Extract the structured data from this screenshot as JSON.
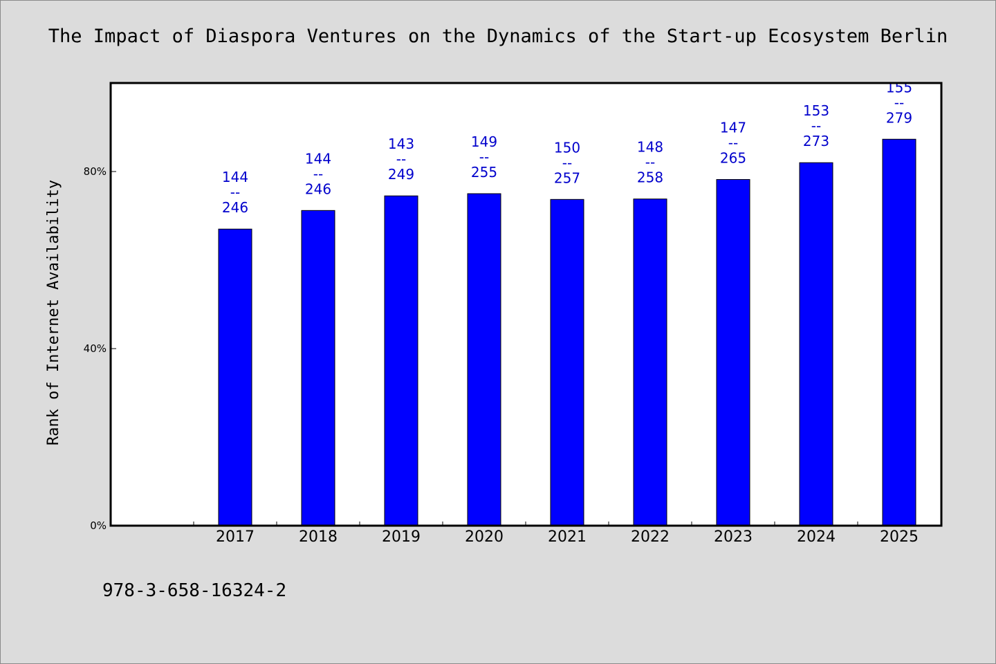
{
  "chart_data": {
    "type": "bar",
    "title": "The Impact of Diaspora Ventures on the Dynamics of the Start-up Ecosystem Berlin",
    "ylabel": "Rank of Internet Availability",
    "xlabel": "",
    "categories": [
      "2017",
      "2018",
      "2019",
      "2020",
      "2021",
      "2022",
      "2023",
      "2024",
      "2025"
    ],
    "values": [
      67,
      71.2,
      74.5,
      75,
      73.7,
      73.8,
      78.2,
      82,
      87.3
    ],
    "value_unit": "%",
    "data_labels": [
      {
        "top": "144",
        "mid": "--",
        "bottom": "246"
      },
      {
        "top": "144",
        "mid": "--",
        "bottom": "246"
      },
      {
        "top": "143",
        "mid": "--",
        "bottom": "249"
      },
      {
        "top": "149",
        "mid": "--",
        "bottom": "255"
      },
      {
        "top": "150",
        "mid": "--",
        "bottom": "257"
      },
      {
        "top": "148",
        "mid": "--",
        "bottom": "258"
      },
      {
        "top": "147",
        "mid": "--",
        "bottom": "265"
      },
      {
        "top": "153",
        "mid": "--",
        "bottom": "273"
      },
      {
        "top": "155",
        "mid": "--",
        "bottom": "279"
      }
    ],
    "ylim": [
      0,
      100
    ],
    "yticks": [
      {
        "value": 0,
        "label": "0%"
      },
      {
        "value": 40,
        "label": "40%"
      },
      {
        "value": 80,
        "label": "80%"
      }
    ],
    "grid": false,
    "legend": "none",
    "colors": {
      "bar": "#0000ff",
      "bar_edge": "#000000",
      "label": "#0000cc",
      "plot_bg": "#ffffff",
      "page_bg": "#dcdcdc"
    }
  },
  "footer": {
    "isbn": "978-3-658-16324-2"
  }
}
